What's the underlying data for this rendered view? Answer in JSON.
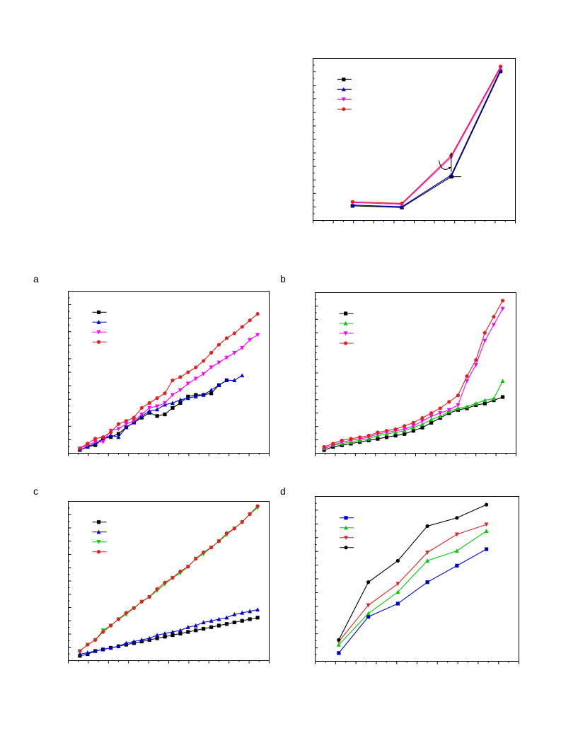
{
  "panel_labels": {
    "a": "a",
    "b": "b",
    "c": "c",
    "d": "d"
  },
  "chart_data": [
    {
      "id": "top",
      "type": "line",
      "x": [
        1,
        2,
        3,
        4
      ],
      "xlim": [
        0.2,
        4.3
      ],
      "ylim": [
        0,
        100
      ],
      "grid": false,
      "legend_position": "top-left",
      "legend_markers": [
        "square",
        "triangle",
        "triangle-down",
        "circle"
      ],
      "series": [
        {
          "color": "#000000",
          "marker": "square",
          "values": [
            9,
            8,
            27,
            92
          ]
        },
        {
          "color": "#0000cc",
          "marker": "triangle",
          "values": [
            9.5,
            8.5,
            28,
            93
          ]
        },
        {
          "color": "#ff00ff",
          "marker": "triangle-down",
          "values": [
            11,
            10,
            39,
            94
          ]
        },
        {
          "color": "#dd2222",
          "marker": "circle",
          "values": [
            11.5,
            10.5,
            40,
            95
          ]
        }
      ],
      "annotations": [
        {
          "type": "arrow",
          "from": [
            3.0,
            30
          ],
          "to": [
            3.0,
            42
          ]
        },
        {
          "type": "arrow",
          "from": [
            3.2,
            27
          ],
          "to": [
            3.0,
            27
          ]
        },
        {
          "type": "curve-arrow",
          "from": [
            2.75,
            37
          ],
          "to": [
            3.0,
            33
          ]
        }
      ]
    },
    {
      "id": "a",
      "type": "line",
      "x": [
        1,
        2,
        3,
        4,
        5,
        6,
        7,
        8,
        9,
        10,
        11,
        12,
        13,
        14,
        15,
        16,
        17,
        18,
        19,
        20,
        21,
        22,
        23,
        24
      ],
      "xlim": [
        -0.5,
        25.5
      ],
      "ylim": [
        0,
        100
      ],
      "grid": false,
      "legend_position": "top-left",
      "legend_markers": [
        "square",
        "triangle",
        "triangle-down",
        "circle"
      ],
      "series": [
        {
          "color": "#000000",
          "marker": "square",
          "values": [
            2,
            4,
            5,
            9,
            10,
            12,
            16,
            19,
            22,
            25,
            23,
            24,
            28,
            31,
            35,
            36,
            36,
            37,
            42,
            45,
            null,
            null,
            null,
            null
          ]
        },
        {
          "color": "#0000cc",
          "marker": "triangle",
          "values": [
            2,
            4,
            6,
            9,
            11,
            10,
            16,
            19,
            23,
            26,
            27,
            30,
            31,
            33,
            34,
            35,
            36,
            39,
            42,
            45,
            45,
            48,
            null,
            null
          ]
        },
        {
          "color": "#ff00ff",
          "marker": "triangle-down",
          "values": [
            3,
            5,
            7,
            7,
            14,
            15,
            18,
            20,
            24,
            28,
            29,
            31,
            36,
            39,
            43,
            46,
            49,
            53,
            56,
            59,
            62,
            65,
            70,
            73
          ]
        },
        {
          "color": "#dd2222",
          "marker": "circle",
          "values": [
            3,
            6,
            9,
            10,
            13,
            18,
            20,
            22,
            28,
            31,
            34,
            37,
            45,
            47,
            50,
            53,
            57,
            62,
            67,
            71,
            74,
            78,
            82,
            86
          ]
        }
      ]
    },
    {
      "id": "b",
      "type": "line",
      "x": [
        1,
        2,
        3,
        4,
        5,
        6,
        7,
        8,
        9,
        10,
        11,
        12,
        13,
        14,
        15,
        16,
        17,
        18,
        19,
        20,
        21
      ],
      "xlim": [
        0,
        22.5
      ],
      "ylim": [
        0,
        100
      ],
      "grid": false,
      "legend_position": "top-left",
      "legend_markers": [
        "square",
        "triangle",
        "triangle-down",
        "circle"
      ],
      "series": [
        {
          "color": "#000000",
          "marker": "square",
          "values": [
            2,
            4,
            5,
            6,
            7,
            8,
            9,
            10,
            11,
            12,
            14,
            16,
            19,
            22,
            25,
            27,
            28,
            30,
            31,
            33,
            35
          ]
        },
        {
          "color": "#00cc00",
          "marker": "triangle",
          "values": [
            3,
            5,
            6,
            7,
            8,
            9,
            11,
            12,
            13,
            14,
            16,
            18,
            21,
            23,
            26,
            28,
            29,
            31,
            33,
            34,
            45
          ]
        },
        {
          "color": "#ff00ff",
          "marker": "triangle-down",
          "values": [
            3,
            5,
            7,
            8,
            9,
            10,
            12,
            13,
            14,
            15,
            17,
            20,
            23,
            25,
            27,
            30,
            45,
            55,
            70,
            80,
            90
          ]
        },
        {
          "color": "#dd2222",
          "marker": "circle",
          "values": [
            4,
            6,
            8,
            9,
            10,
            11,
            13,
            14,
            15,
            17,
            19,
            22,
            25,
            28,
            32,
            36,
            48,
            58,
            75,
            85,
            95
          ]
        }
      ]
    },
    {
      "id": "c",
      "type": "line",
      "x": [
        1,
        2,
        3,
        4,
        5,
        6,
        7,
        8,
        9,
        10,
        11,
        12,
        13,
        14,
        15,
        16,
        17,
        18,
        19,
        20,
        21,
        22,
        23,
        24
      ],
      "xlim": [
        -0.5,
        25.5
      ],
      "ylim": [
        0,
        100
      ],
      "grid": false,
      "legend_position": "top-left",
      "legend_markers": [
        "square",
        "triangle",
        "triangle-down",
        "circle"
      ],
      "series": [
        {
          "color": "#000000",
          "marker": "square",
          "values": [
            3,
            4,
            6,
            7,
            8,
            9,
            10,
            11,
            12,
            13,
            14,
            15,
            16,
            17,
            18,
            19,
            20,
            21,
            22,
            23,
            24,
            25,
            26,
            27
          ]
        },
        {
          "color": "#0000cc",
          "marker": "triangle",
          "values": [
            4,
            5,
            6,
            7,
            8,
            9,
            11,
            12,
            13,
            14,
            16,
            17,
            18,
            19,
            21,
            22,
            24,
            25,
            26,
            27,
            29,
            30,
            31,
            32
          ]
        },
        {
          "color": "#00cc00",
          "marker": "triangle-down",
          "values": [
            6,
            10,
            13,
            19,
            22,
            26,
            29,
            33,
            37,
            40,
            44,
            48,
            52,
            55,
            59,
            64,
            67,
            71,
            75,
            79,
            83,
            87,
            92,
            96
          ]
        },
        {
          "color": "#dd2222",
          "marker": "circle",
          "values": [
            6,
            10,
            13,
            18,
            22,
            26,
            30,
            33,
            37,
            40,
            45,
            49,
            52,
            56,
            59,
            64,
            68,
            71,
            75,
            80,
            83,
            87,
            92,
            97
          ]
        }
      ]
    },
    {
      "id": "d",
      "type": "line",
      "x": [
        1,
        2,
        3,
        4,
        5,
        6
      ],
      "xlim": [
        0.2,
        7.1
      ],
      "ylim": [
        0,
        100
      ],
      "grid": false,
      "legend_position": "top-left",
      "legend_markers": [
        "square",
        "triangle",
        "triangle-down",
        "circle"
      ],
      "series": [
        {
          "color": "#0000cc",
          "marker": "square",
          "values": [
            5,
            27,
            35,
            48,
            58,
            68
          ]
        },
        {
          "color": "#00cc00",
          "marker": "triangle",
          "values": [
            10,
            29,
            42,
            61,
            67,
            79
          ]
        },
        {
          "color": "#dd2222",
          "marker": "triangle-down",
          "values": [
            12,
            34,
            47,
            66,
            77,
            83
          ]
        },
        {
          "color": "#000000",
          "marker": "circle",
          "values": [
            13,
            48,
            61,
            82,
            87,
            95
          ]
        }
      ]
    }
  ]
}
